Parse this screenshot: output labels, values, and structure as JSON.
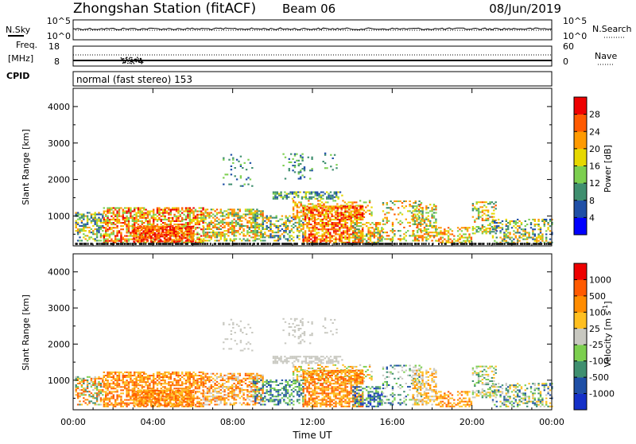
{
  "header": {
    "title": "Zhongshan Station (fitACF)",
    "beam": "Beam 06",
    "date": "08/Jun/2019"
  },
  "nsky_panel": {
    "left_label": "N.Sky",
    "left_ticks": [
      "10^5",
      "10^0"
    ],
    "right_ticks": [
      "10^5",
      "10^0"
    ],
    "right_label": "N.Search"
  },
  "freq_panel": {
    "left_label_1": "Freq.",
    "left_label_2": "[MHz]",
    "left_ticks": [
      "18",
      "8"
    ],
    "right_ticks": [
      "60",
      "0"
    ],
    "right_label": "Nave"
  },
  "cpid": {
    "label": "CPID",
    "text": "normal (fast stereo) 153"
  },
  "colors": {
    "power": [
      "#0000ff",
      "#1f4fa6",
      "#3f8f6f",
      "#7ccf4f",
      "#e6d800",
      "#ff9a00",
      "#ff5a00",
      "#ee0000"
    ],
    "velocity": [
      "#ee0000",
      "#ff5a00",
      "#ff8c00",
      "#ffbf20",
      "#c8c8c0",
      "#7ccf4f",
      "#3f8f6f",
      "#1f4fa6",
      "#1430c8"
    ]
  },
  "chart_data": [
    {
      "type": "heatmap",
      "title": "Power",
      "ylabel": "Slant Range [km]",
      "yticks": [
        "1000",
        "2000",
        "3000",
        "4000"
      ],
      "ylim": [
        180,
        4500
      ],
      "colorbar_label": "Power [dB]",
      "colorbar_ticks": [
        "4",
        "8",
        "12",
        "16",
        "20",
        "24",
        "28"
      ],
      "colorbar_range": [
        0,
        32
      ]
    },
    {
      "type": "heatmap",
      "title": "Velocity",
      "xlabel": "Time UT",
      "ylabel": "Slant Range [km]",
      "xticks": [
        "00:00",
        "04:00",
        "08:00",
        "12:00",
        "16:00",
        "20:00",
        "00:00"
      ],
      "xlim": [
        "00:00",
        "24:00"
      ],
      "yticks": [
        "1000",
        "2000",
        "3000",
        "4000"
      ],
      "ylim": [
        180,
        4500
      ],
      "colorbar_label": "Velocity [m s^-1]",
      "colorbar_ticks": [
        "1000",
        "500",
        "100",
        "25",
        "-25",
        "-100",
        "-500",
        "-1000"
      ]
    }
  ]
}
